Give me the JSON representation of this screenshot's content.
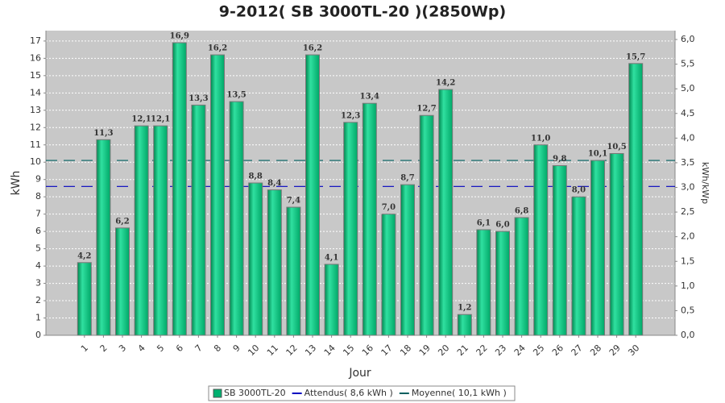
{
  "chart_data": {
    "type": "bar",
    "title": "9-2012( SB 3000TL-20 )(2850Wp)",
    "x_label": "Jour",
    "y_label": "kWh",
    "y2_label": "kWh/kWp",
    "categories": [
      "1",
      "2",
      "3",
      "4",
      "5",
      "6",
      "7",
      "8",
      "9",
      "10",
      "11",
      "12",
      "13",
      "14",
      "15",
      "16",
      "17",
      "18",
      "19",
      "20",
      "21",
      "22",
      "23",
      "24",
      "25",
      "26",
      "27",
      "28",
      "29",
      "30"
    ],
    "series": [
      {
        "name": "SB 3000TL-20",
        "color": "#00b070",
        "values": [
          4.2,
          11.3,
          6.2,
          12.1,
          12.1,
          16.9,
          13.3,
          16.2,
          13.5,
          8.8,
          8.4,
          7.4,
          16.2,
          4.1,
          12.3,
          13.4,
          7.0,
          8.7,
          12.7,
          14.2,
          1.2,
          6.1,
          6.0,
          6.8,
          11.0,
          9.8,
          8.0,
          10.1,
          10.5,
          15.7
        ],
        "value_labels": [
          "4,2",
          "11,3",
          "6,2",
          "12,1",
          "12,1",
          "16,9",
          "13,3",
          "16,2",
          "13,5",
          "8,8",
          "8,4",
          "7,4",
          "16,2",
          "4,1",
          "12,3",
          "13,4",
          "7,0",
          "8,7",
          "12,7",
          "14,2",
          "1,2",
          "6,1",
          "6,0",
          "6,8",
          "11,0",
          "9,8",
          "8,0",
          "10,1",
          "10,5",
          "15,7"
        ]
      }
    ],
    "lines": [
      {
        "name": "Attendus( 8,6 kWh )",
        "color": "#0000c0",
        "value": 8.6
      },
      {
        "name": "Moyenne( 10,1 kWh )",
        "color": "#006060",
        "value": 10.1
      }
    ],
    "ylim": [
      0,
      17.6
    ],
    "yticks": [
      0,
      1,
      2,
      3,
      4,
      5,
      6,
      7,
      8,
      9,
      10,
      11,
      12,
      13,
      14,
      15,
      16,
      17
    ],
    "y2lim": [
      0,
      6.18
    ],
    "y2ticks": [
      {
        "value": 0,
        "label": "0,0"
      },
      {
        "value": 0.5,
        "label": "0,5"
      },
      {
        "value": 1,
        "label": "1,0"
      },
      {
        "value": 1.5,
        "label": "1,5"
      },
      {
        "value": 2,
        "label": "2,0"
      },
      {
        "value": 2.5,
        "label": "2,5"
      },
      {
        "value": 3,
        "label": "3,0"
      },
      {
        "value": 3.5,
        "label": "3,5"
      },
      {
        "value": 4,
        "label": "4,0"
      },
      {
        "value": 4.5,
        "label": "4,5"
      },
      {
        "value": 5,
        "label": "5,0"
      },
      {
        "value": 5.5,
        "label": "5,5"
      },
      {
        "value": 6,
        "label": "6,0"
      }
    ],
    "grid": true
  }
}
